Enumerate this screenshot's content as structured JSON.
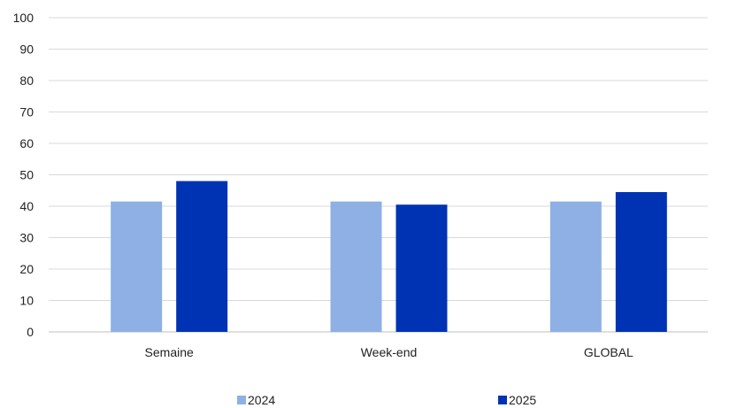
{
  "chart_data": {
    "type": "bar",
    "title": "",
    "xlabel": "",
    "ylabel": "",
    "categories": [
      "Semaine",
      "Week-end",
      "GLOBAL"
    ],
    "series": [
      {
        "name": "2024",
        "values": [
          41.5,
          41.5,
          41.5
        ],
        "color": "#8eb0e4"
      },
      {
        "name": "2025",
        "values": [
          48,
          40.5,
          44.5
        ],
        "color": "#0033b4"
      }
    ],
    "ylim": [
      0,
      100
    ],
    "yticks": [
      "0",
      "10",
      "20",
      "30",
      "40",
      "50",
      "60",
      "70",
      "80",
      "90",
      "100"
    ],
    "grid": true,
    "legend": "bottom"
  }
}
